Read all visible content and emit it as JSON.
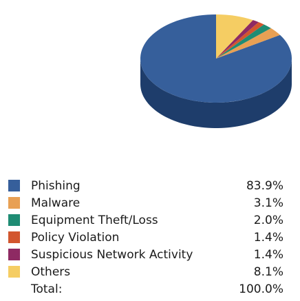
{
  "chart_data": {
    "type": "pie",
    "categories": [
      "Phishing",
      "Malware",
      "Equipment Theft/Loss",
      "Policy Violation",
      "Suspicious Network Activity",
      "Others"
    ],
    "values": [
      83.9,
      3.1,
      2.0,
      1.4,
      1.4,
      8.1
    ],
    "value_labels": [
      "83.9%",
      "3.1%",
      "2.0%",
      "1.4%",
      "1.4%",
      "8.1%"
    ],
    "colors": [
      "#365f9b",
      "#e8a054",
      "#1f8c74",
      "#d2562e",
      "#8e2a63",
      "#f5cd63"
    ],
    "side_colors": [
      "#1e3d6b",
      "#b77937",
      "#156652",
      "#9c3c1f",
      "#651d47",
      "#c29f45"
    ],
    "total_label": "Total:",
    "total_value": "100.0%",
    "legend_position": "bottom"
  }
}
